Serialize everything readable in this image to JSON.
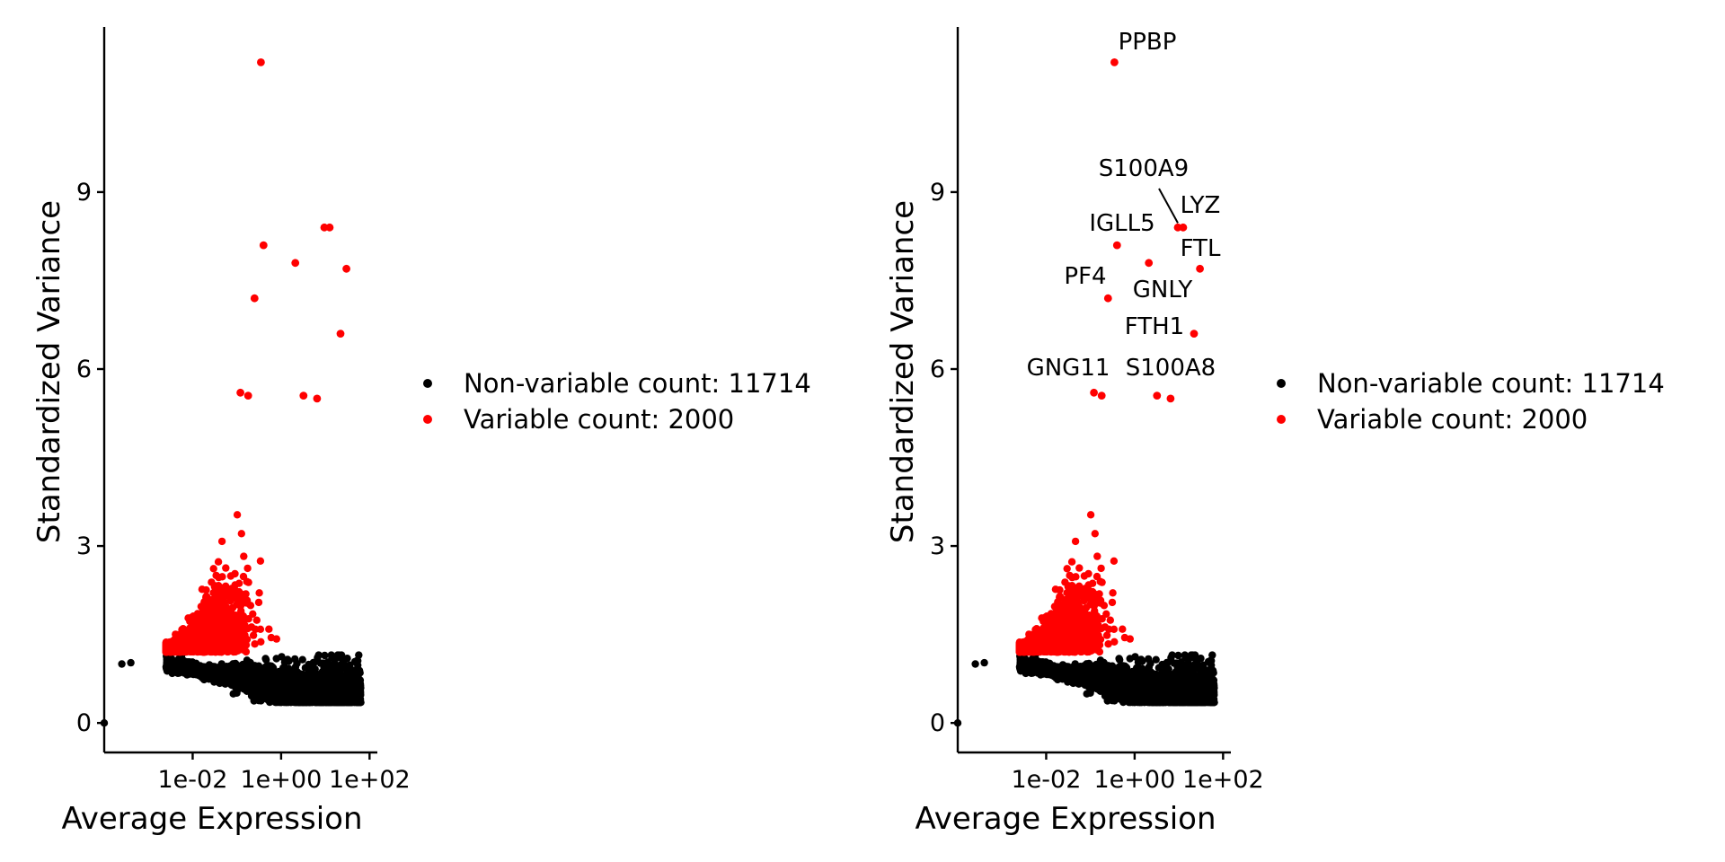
{
  "colors": {
    "variable": "#ff0000",
    "non_variable": "#000000"
  },
  "chart_data": [
    {
      "type": "scatter",
      "xlabel": "Average Expression",
      "ylabel": "Standardized Variance",
      "x_scale": "log10",
      "xlim": [
        0.0001,
        150
      ],
      "ylim": [
        -0.5,
        11.8
      ],
      "x_ticks": [
        {
          "value": 0.01,
          "label": "1e-02"
        },
        {
          "value": 1,
          "label": "1e+00"
        },
        {
          "value": 100,
          "label": "1e+02"
        }
      ],
      "y_ticks": [
        {
          "value": 0,
          "label": "0"
        },
        {
          "value": 3,
          "label": "3"
        },
        {
          "value": 6,
          "label": "6"
        },
        {
          "value": 9,
          "label": "9"
        }
      ],
      "grid": false,
      "legend_position": "right",
      "legend": [
        {
          "label": "Non-variable count: 11714",
          "color": "#000000"
        },
        {
          "label": "Variable count: 2000",
          "color": "#ff0000"
        }
      ],
      "highlighted_points": [
        {
          "x": 0.35,
          "y": 11.2
        },
        {
          "x": 0.4,
          "y": 8.1
        },
        {
          "x": 0.25,
          "y": 7.2
        },
        {
          "x": 2.1,
          "y": 7.8
        },
        {
          "x": 9.5,
          "y": 8.4
        },
        {
          "x": 12.5,
          "y": 8.4
        },
        {
          "x": 30,
          "y": 7.7
        },
        {
          "x": 22,
          "y": 6.6
        },
        {
          "x": 0.12,
          "y": 5.6
        },
        {
          "x": 0.18,
          "y": 5.55
        },
        {
          "x": 3.2,
          "y": 5.55
        },
        {
          "x": 6.5,
          "y": 5.5
        }
      ],
      "labels": []
    },
    {
      "type": "scatter",
      "xlabel": "Average Expression",
      "ylabel": "Standardized Variance",
      "x_scale": "log10",
      "xlim": [
        0.0001,
        150
      ],
      "ylim": [
        -0.5,
        11.8
      ],
      "x_ticks": [
        {
          "value": 0.01,
          "label": "1e-02"
        },
        {
          "value": 1,
          "label": "1e+00"
        },
        {
          "value": 100,
          "label": "1e+02"
        }
      ],
      "y_ticks": [
        {
          "value": 0,
          "label": "0"
        },
        {
          "value": 3,
          "label": "3"
        },
        {
          "value": 6,
          "label": "6"
        },
        {
          "value": 9,
          "label": "9"
        }
      ],
      "grid": false,
      "legend_position": "right",
      "legend": [
        {
          "label": "Non-variable count: 11714",
          "color": "#000000"
        },
        {
          "label": "Variable count: 2000",
          "color": "#ff0000"
        }
      ],
      "highlighted_points": [
        {
          "x": 0.35,
          "y": 11.2
        },
        {
          "x": 0.4,
          "y": 8.1
        },
        {
          "x": 0.25,
          "y": 7.2
        },
        {
          "x": 2.1,
          "y": 7.8
        },
        {
          "x": 9.5,
          "y": 8.4
        },
        {
          "x": 12.5,
          "y": 8.4
        },
        {
          "x": 30,
          "y": 7.7
        },
        {
          "x": 22,
          "y": 6.6
        },
        {
          "x": 0.12,
          "y": 5.6
        },
        {
          "x": 0.18,
          "y": 5.55
        },
        {
          "x": 3.2,
          "y": 5.55
        },
        {
          "x": 6.5,
          "y": 5.5
        }
      ],
      "labels": [
        {
          "text": "PPBP",
          "x": 0.35,
          "y": 11.2
        },
        {
          "text": "S100A9",
          "x": 9.5,
          "y": 8.4
        },
        {
          "text": "LYZ",
          "x": 12.5,
          "y": 8.4
        },
        {
          "text": "IGLL5",
          "x": 0.4,
          "y": 8.1
        },
        {
          "text": "FTL",
          "x": 30,
          "y": 7.7
        },
        {
          "text": "PF4",
          "x": 0.25,
          "y": 7.2
        },
        {
          "text": "GNLY",
          "x": 2.1,
          "y": 7.8
        },
        {
          "text": "FTH1",
          "x": 22,
          "y": 6.6
        },
        {
          "text": "GNG11",
          "x": 0.12,
          "y": 5.6
        },
        {
          "text": "S100A8",
          "x": 3.2,
          "y": 5.55
        }
      ]
    }
  ]
}
